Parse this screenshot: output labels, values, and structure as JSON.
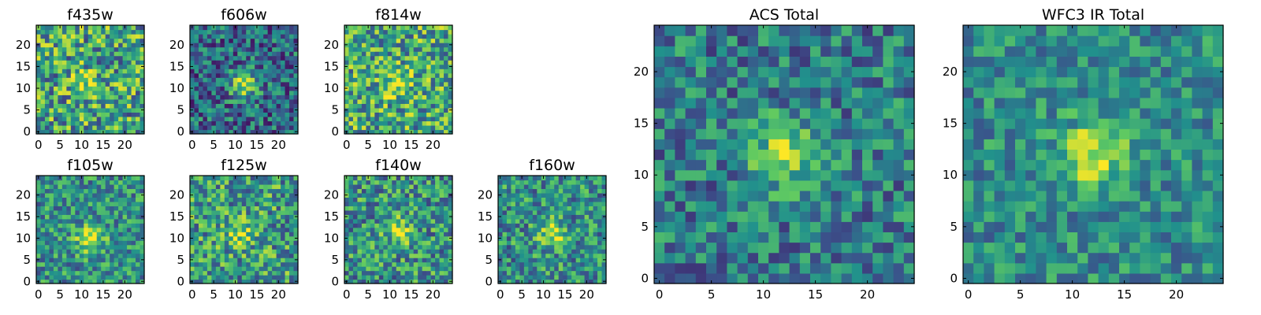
{
  "chart_data": [
    {
      "type": "heatmap",
      "title": "f435w",
      "panel": "small",
      "grid_size": 25,
      "xticks": [
        0,
        5,
        10,
        15,
        20
      ],
      "yticks": [
        0,
        5,
        10,
        15,
        20
      ],
      "xlim": [
        0,
        25
      ],
      "ylim": [
        0,
        25
      ],
      "peak": [
        11,
        11
      ],
      "peak_amp": 0.25,
      "noise": 0.38,
      "base": 0.58,
      "seed": 11
    },
    {
      "type": "heatmap",
      "title": "f606w",
      "panel": "small",
      "grid_size": 25,
      "xticks": [
        0,
        5,
        10,
        15,
        20
      ],
      "yticks": [
        0,
        5,
        10,
        15,
        20
      ],
      "xlim": [
        0,
        25
      ],
      "ylim": [
        0,
        25
      ],
      "peak": [
        12,
        11
      ],
      "peak_amp": 0.55,
      "noise": 0.3,
      "base": 0.35,
      "seed": 23
    },
    {
      "type": "heatmap",
      "title": "f814w",
      "panel": "small",
      "grid_size": 25,
      "xticks": [
        0,
        5,
        10,
        15,
        20
      ],
      "yticks": [
        0,
        5,
        10,
        15,
        20
      ],
      "xlim": [
        0,
        25
      ],
      "ylim": [
        0,
        25
      ],
      "peak": [
        12,
        11
      ],
      "peak_amp": 0.3,
      "noise": 0.36,
      "base": 0.6,
      "seed": 37
    },
    {
      "type": "heatmap",
      "title": "f105w",
      "panel": "small",
      "grid_size": 25,
      "xticks": [
        0,
        5,
        10,
        15,
        20
      ],
      "yticks": [
        0,
        5,
        10,
        15,
        20
      ],
      "xlim": [
        0,
        25
      ],
      "ylim": [
        0,
        25
      ],
      "peak": [
        12,
        10
      ],
      "peak_amp": 0.45,
      "noise": 0.28,
      "base": 0.5,
      "seed": 41
    },
    {
      "type": "heatmap",
      "title": "f125w",
      "panel": "small",
      "grid_size": 25,
      "xticks": [
        0,
        5,
        10,
        15,
        20
      ],
      "yticks": [
        0,
        5,
        10,
        15,
        20
      ],
      "xlim": [
        0,
        25
      ],
      "ylim": [
        0,
        25
      ],
      "peak": [
        11,
        11
      ],
      "peak_amp": 0.3,
      "noise": 0.34,
      "base": 0.55,
      "seed": 53
    },
    {
      "type": "heatmap",
      "title": "f140w",
      "panel": "small",
      "grid_size": 25,
      "xticks": [
        0,
        5,
        10,
        15,
        20
      ],
      "yticks": [
        0,
        5,
        10,
        15,
        20
      ],
      "xlim": [
        0,
        25
      ],
      "ylim": [
        0,
        25
      ],
      "peak": [
        12,
        12
      ],
      "peak_amp": 0.35,
      "noise": 0.32,
      "base": 0.52,
      "seed": 67
    },
    {
      "type": "heatmap",
      "title": "f160w",
      "panel": "small",
      "grid_size": 25,
      "xticks": [
        0,
        5,
        10,
        15,
        20
      ],
      "yticks": [
        0,
        5,
        10,
        15,
        20
      ],
      "xlim": [
        0,
        25
      ],
      "ylim": [
        0,
        25
      ],
      "peak": [
        12,
        11
      ],
      "peak_amp": 0.4,
      "noise": 0.3,
      "base": 0.5,
      "seed": 79
    },
    {
      "type": "heatmap",
      "title": "ACS Total",
      "panel": "large",
      "grid_size": 25,
      "xticks": [
        0,
        5,
        10,
        15,
        20
      ],
      "yticks": [
        0,
        5,
        10,
        15,
        20
      ],
      "xlim": [
        0,
        25
      ],
      "ylim": [
        0,
        25
      ],
      "peak": [
        12,
        12
      ],
      "peak_amp": 0.45,
      "noise": 0.26,
      "base": 0.42,
      "seed": 97
    },
    {
      "type": "heatmap",
      "title": "WFC3 IR Total",
      "panel": "large",
      "grid_size": 25,
      "xticks": [
        0,
        5,
        10,
        15,
        20
      ],
      "yticks": [
        0,
        5,
        10,
        15,
        20
      ],
      "xlim": [
        0,
        25
      ],
      "ylim": [
        0,
        25
      ],
      "peak": [
        12,
        12
      ],
      "peak_amp": 0.45,
      "noise": 0.22,
      "base": 0.48,
      "seed": 113
    }
  ],
  "colormap": [
    "#440154",
    "#3b528b",
    "#21918c",
    "#5ec962",
    "#fde725"
  ]
}
